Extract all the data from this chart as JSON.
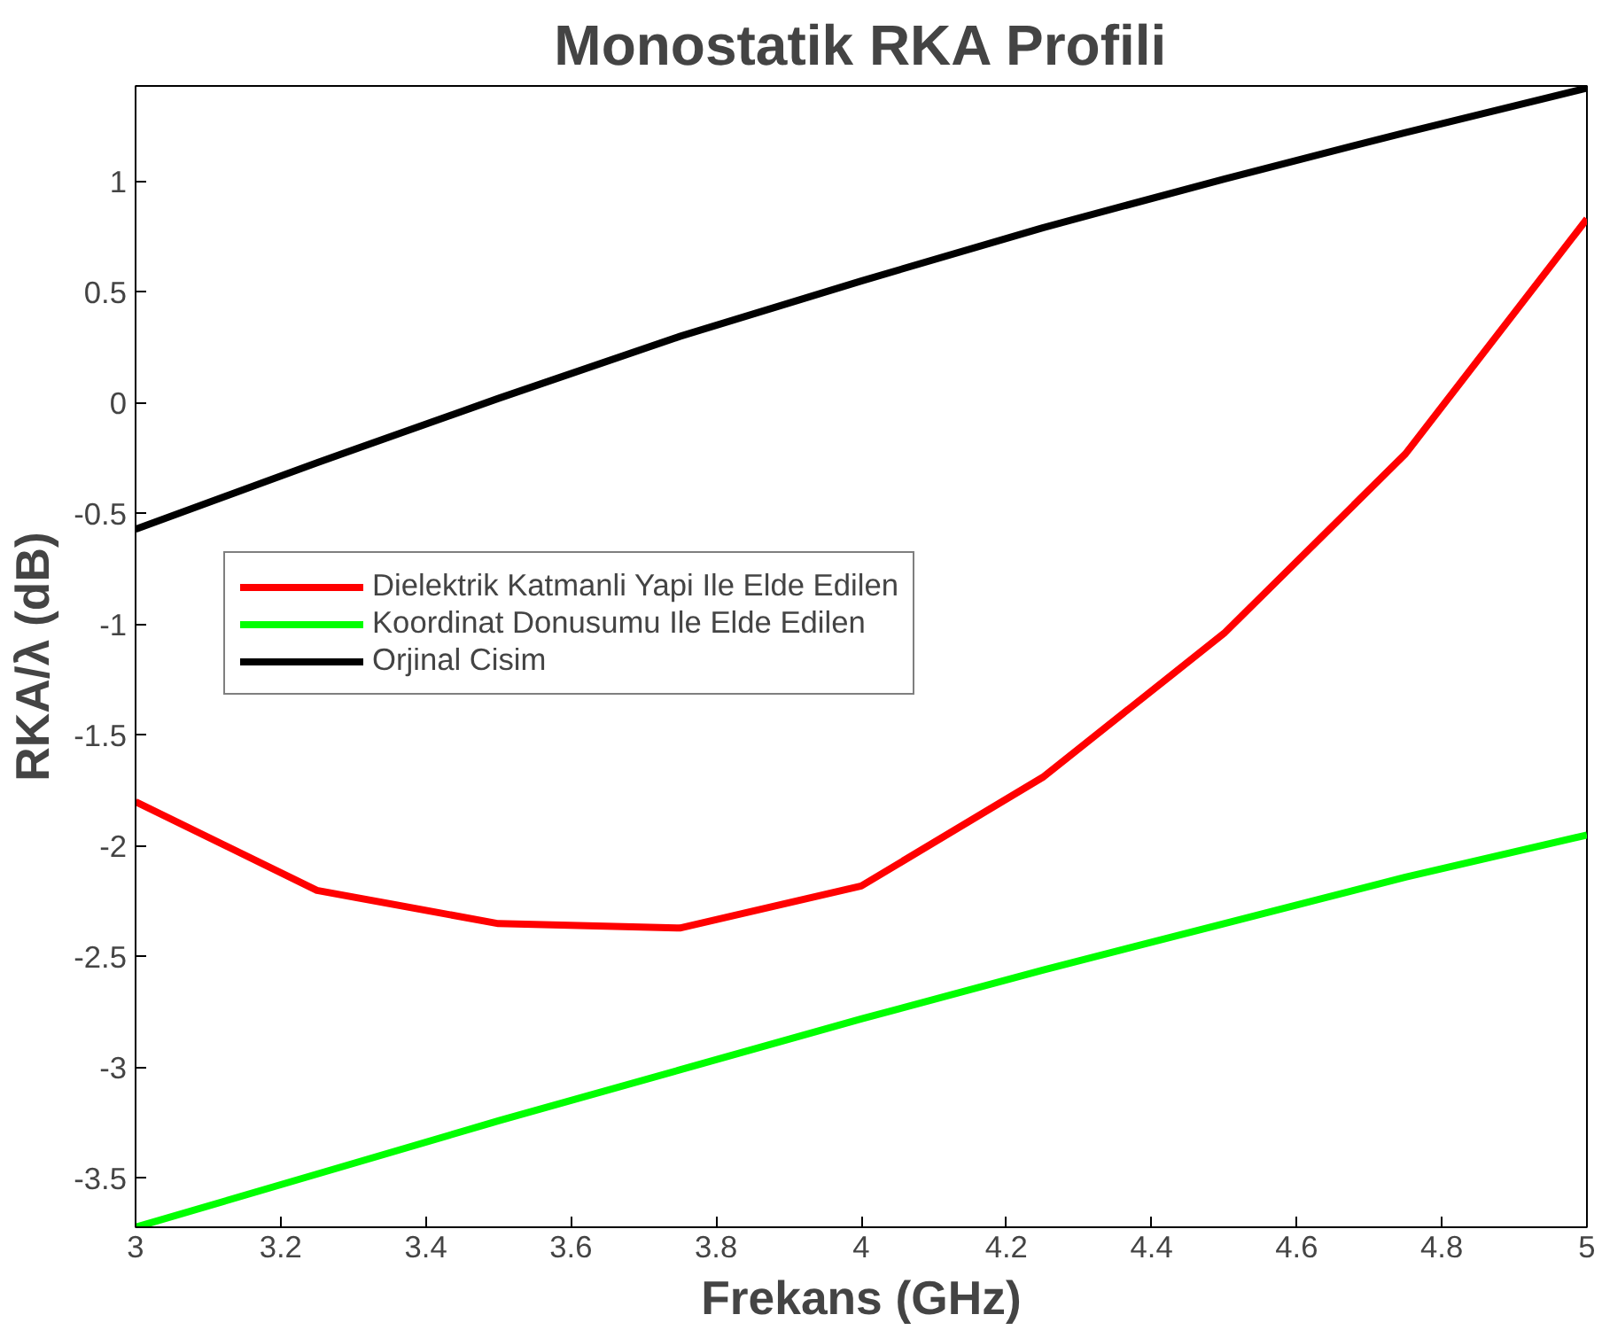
{
  "chart_data": {
    "type": "line",
    "title": "Monostatik RKA Profili",
    "xlabel": "Frekans (GHz)",
    "ylabel": "RKA/λ (dB)",
    "x": [
      3,
      3.25,
      3.5,
      3.75,
      4,
      4.25,
      4.5,
      4.75,
      5
    ],
    "series": [
      {
        "name": "Dielektrik Katmanli Yapi Ile Elde Edilen",
        "color": "#ff0000",
        "values": [
          -1.8,
          -2.2,
          -2.35,
          -2.37,
          -2.18,
          -1.69,
          -1.04,
          -0.23,
          0.83
        ]
      },
      {
        "name": "Koordinat Donusumu Ile Elde Edilen",
        "color": "#00ff00",
        "values": [
          -3.72,
          -3.48,
          -3.24,
          -3.01,
          -2.78,
          -2.56,
          -2.35,
          -2.14,
          -1.95
        ]
      },
      {
        "name": "Orjinal Cisim",
        "color": "#000000",
        "values": [
          -0.57,
          -0.27,
          0.02,
          0.3,
          0.55,
          0.79,
          1.01,
          1.22,
          1.42
        ]
      }
    ],
    "xlim": [
      3,
      5
    ],
    "ylim": [
      -3.72,
      1.43
    ],
    "xticks": [
      3,
      3.2,
      3.4,
      3.6,
      3.8,
      4,
      4.2,
      4.4,
      4.6,
      4.8,
      5
    ],
    "yticks": [
      -3.5,
      -3,
      -2.5,
      -2,
      -1.5,
      -1,
      -0.5,
      0,
      0.5,
      1
    ],
    "grid": false,
    "legend": "left",
    "marker": "none",
    "line_style": "solid"
  }
}
